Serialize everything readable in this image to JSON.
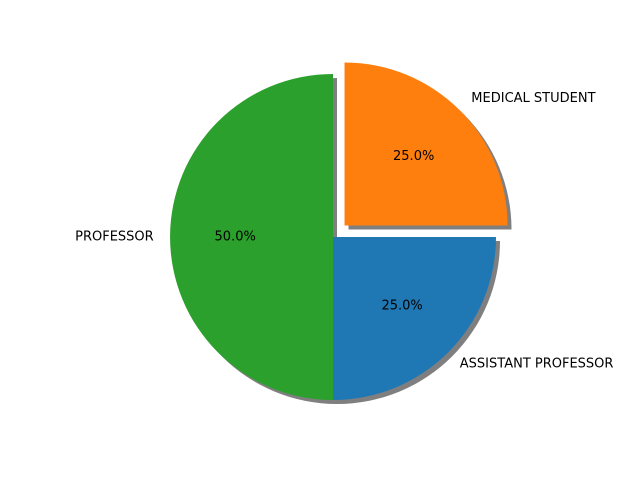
{
  "chart_data": {
    "type": "pie",
    "title": "",
    "slices": [
      {
        "label": "PROFESSOR",
        "value": 50.0,
        "pct_text": "50.0%",
        "color": "#2ca02c",
        "exploded": false
      },
      {
        "label": "ASSISTANT PROFESSOR",
        "value": 25.0,
        "pct_text": "25.0%",
        "color": "#1f77b4",
        "exploded": false
      },
      {
        "label": "MEDICAL STUDENT",
        "value": 25.0,
        "pct_text": "25.0%",
        "color": "#ff7f0e",
        "exploded": true
      }
    ],
    "start_angle_deg": 90,
    "direction": "counterclockwise",
    "shadow": true,
    "legend": "none"
  }
}
